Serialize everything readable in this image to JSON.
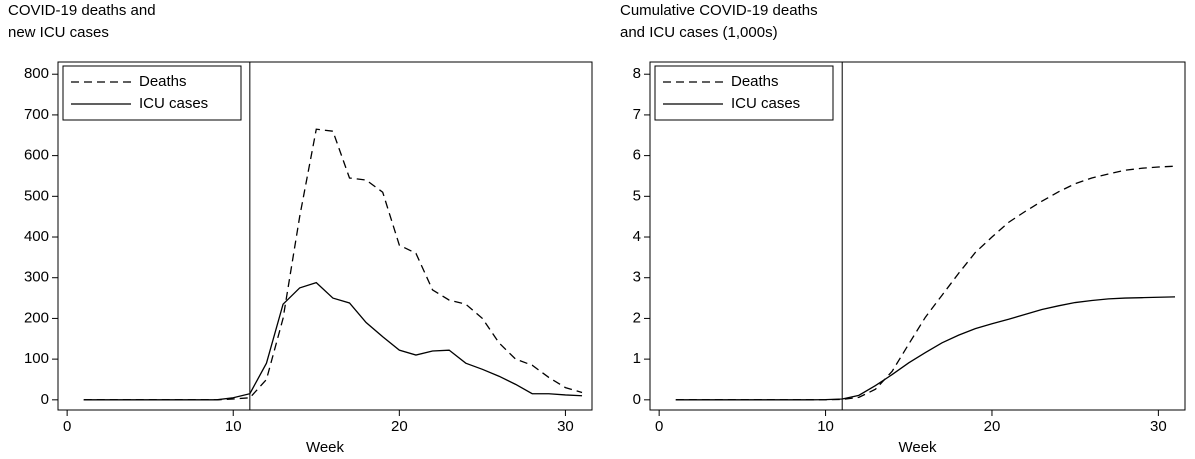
{
  "chart_data": [
    {
      "type": "line",
      "title": [
        "COVID-19 deaths and",
        "new ICU cases"
      ],
      "xlabel": "Week",
      "x": [
        1,
        2,
        3,
        4,
        5,
        6,
        7,
        8,
        9,
        10,
        11,
        12,
        13,
        14,
        15,
        16,
        17,
        18,
        19,
        20,
        21,
        22,
        23,
        24,
        25,
        26,
        27,
        28,
        29,
        30,
        31
      ],
      "series": [
        {
          "name": "Deaths",
          "color": "#000000",
          "style": "dashed",
          "values": [
            0,
            0,
            0,
            0,
            0,
            0,
            0,
            0,
            0,
            2,
            5,
            50,
            200,
            450,
            665,
            660,
            545,
            540,
            510,
            380,
            360,
            270,
            245,
            235,
            200,
            140,
            100,
            85,
            55,
            30,
            18
          ]
        },
        {
          "name": "ICU cases",
          "color": "#000000",
          "style": "solid",
          "values": [
            0,
            0,
            0,
            0,
            0,
            0,
            0,
            0,
            0,
            5,
            15,
            90,
            235,
            275,
            288,
            250,
            238,
            190,
            155,
            122,
            110,
            120,
            122,
            90,
            75,
            58,
            38,
            15,
            15,
            12,
            10
          ]
        }
      ],
      "vline": 11,
      "xlim": [
        -0.55,
        31.6
      ],
      "xticks": [
        0,
        10,
        20,
        30
      ],
      "ylim": [
        -25,
        830
      ],
      "yticks": [
        0,
        100,
        200,
        300,
        400,
        500,
        600,
        700,
        800
      ],
      "legend": "top-left"
    },
    {
      "type": "line",
      "title": [
        "Cumulative COVID-19 deaths",
        "and ICU cases (1,000s)"
      ],
      "xlabel": "Week",
      "x": [
        1,
        2,
        3,
        4,
        5,
        6,
        7,
        8,
        9,
        10,
        11,
        12,
        13,
        14,
        15,
        16,
        17,
        18,
        19,
        20,
        21,
        22,
        23,
        24,
        25,
        26,
        27,
        28,
        29,
        30,
        31
      ],
      "series": [
        {
          "name": "Deaths",
          "color": "#000000",
          "style": "dashed",
          "values": [
            0,
            0,
            0,
            0,
            0,
            0,
            0,
            0,
            0,
            0.002,
            0.01,
            0.06,
            0.26,
            0.7,
            1.37,
            2.03,
            2.57,
            3.11,
            3.62,
            4.0,
            4.36,
            4.63,
            4.88,
            5.11,
            5.31,
            5.45,
            5.55,
            5.64,
            5.69,
            5.72,
            5.74
          ]
        },
        {
          "name": "ICU cases",
          "color": "#000000",
          "style": "solid",
          "values": [
            0,
            0,
            0,
            0,
            0,
            0,
            0,
            0,
            0,
            0.005,
            0.02,
            0.11,
            0.35,
            0.62,
            0.91,
            1.16,
            1.4,
            1.59,
            1.75,
            1.87,
            1.98,
            2.1,
            2.22,
            2.31,
            2.39,
            2.44,
            2.48,
            2.5,
            2.51,
            2.52,
            2.53
          ]
        }
      ],
      "vline": 11,
      "xlim": [
        -0.55,
        31.6
      ],
      "xticks": [
        0,
        10,
        20,
        30
      ],
      "ylim": [
        -0.25,
        8.3
      ],
      "yticks": [
        0,
        1,
        2,
        3,
        4,
        5,
        6,
        7,
        8
      ],
      "legend": "top-left"
    }
  ]
}
